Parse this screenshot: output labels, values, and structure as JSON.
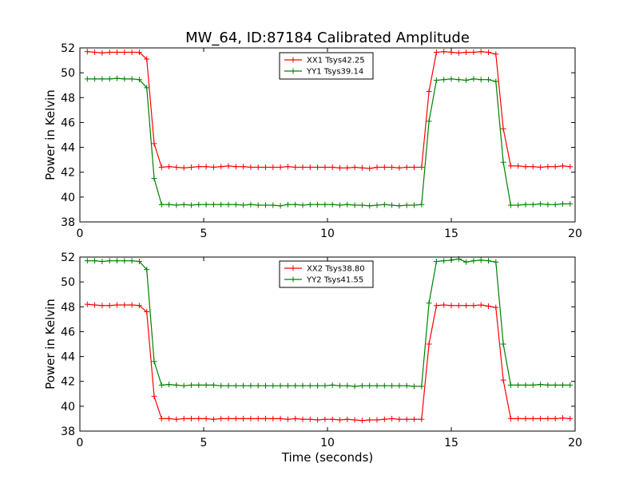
{
  "title": "MW_64, ID:87184 Calibrated Amplitude",
  "chart_data": [
    {
      "type": "line",
      "panel": "top",
      "ylabel": "Power in Kelvin",
      "xlabel": "",
      "xlim": [
        0,
        20
      ],
      "ylim": [
        38,
        52
      ],
      "xticks": [
        0,
        5,
        10,
        15,
        20
      ],
      "yticks": [
        38,
        40,
        42,
        44,
        46,
        48,
        50,
        52
      ],
      "legend_position": "top-center",
      "x": [
        0.3,
        0.6,
        0.9,
        1.2,
        1.5,
        1.8,
        2.1,
        2.4,
        2.7,
        3.0,
        3.3,
        3.6,
        3.9,
        4.2,
        4.5,
        4.8,
        5.1,
        5.4,
        5.7,
        6.0,
        6.3,
        6.6,
        6.9,
        7.2,
        7.5,
        7.8,
        8.1,
        8.4,
        8.7,
        9.0,
        9.3,
        9.6,
        9.9,
        10.2,
        10.5,
        10.8,
        11.1,
        11.4,
        11.7,
        12.0,
        12.3,
        12.6,
        12.9,
        13.2,
        13.5,
        13.8,
        14.1,
        14.4,
        14.7,
        15.0,
        15.3,
        15.6,
        15.9,
        16.2,
        16.5,
        16.8,
        17.1,
        17.4,
        17.7,
        18.0,
        18.3,
        18.6,
        18.9,
        19.2,
        19.5,
        19.8
      ],
      "series": [
        {
          "name": "XX1 Tsys42.25",
          "color": "#ff0000",
          "values": [
            51.7,
            51.65,
            51.6,
            51.65,
            51.65,
            51.65,
            51.65,
            51.65,
            51.1,
            44.3,
            42.4,
            42.45,
            42.4,
            42.35,
            42.4,
            42.45,
            42.45,
            42.4,
            42.45,
            42.5,
            42.45,
            42.45,
            42.4,
            42.4,
            42.4,
            42.4,
            42.4,
            42.45,
            42.4,
            42.4,
            42.4,
            42.4,
            42.4,
            42.4,
            42.35,
            42.35,
            42.4,
            42.35,
            42.3,
            42.4,
            42.4,
            42.4,
            42.35,
            42.4,
            42.4,
            42.4,
            48.5,
            51.65,
            51.7,
            51.65,
            51.6,
            51.65,
            51.65,
            51.7,
            51.65,
            51.5,
            45.5,
            42.5,
            42.5,
            42.45,
            42.45,
            42.4,
            42.45,
            42.45,
            42.5,
            42.45
          ]
        },
        {
          "name": "YY1 Tsys39.14",
          "color": "#008000",
          "values": [
            49.5,
            49.5,
            49.5,
            49.5,
            49.55,
            49.5,
            49.5,
            49.45,
            48.8,
            41.5,
            39.4,
            39.4,
            39.35,
            39.4,
            39.35,
            39.4,
            39.4,
            39.4,
            39.4,
            39.4,
            39.4,
            39.35,
            39.4,
            39.35,
            39.35,
            39.35,
            39.3,
            39.4,
            39.4,
            39.35,
            39.4,
            39.4,
            39.4,
            39.4,
            39.35,
            39.4,
            39.35,
            39.35,
            39.3,
            39.35,
            39.4,
            39.35,
            39.3,
            39.35,
            39.35,
            39.4,
            46.1,
            49.4,
            49.45,
            49.5,
            49.45,
            49.4,
            49.5,
            49.45,
            49.45,
            49.3,
            42.8,
            39.35,
            39.35,
            39.4,
            39.4,
            39.45,
            39.4,
            39.4,
            39.45,
            39.45
          ]
        }
      ]
    },
    {
      "type": "line",
      "panel": "bottom",
      "ylabel": "Power in Kelvin",
      "xlabel": "Time (seconds)",
      "xlim": [
        0,
        20
      ],
      "ylim": [
        38,
        52
      ],
      "xticks": [
        0,
        5,
        10,
        15,
        20
      ],
      "yticks": [
        38,
        40,
        42,
        44,
        46,
        48,
        50,
        52
      ],
      "legend_position": "top-center",
      "x": [
        0.3,
        0.6,
        0.9,
        1.2,
        1.5,
        1.8,
        2.1,
        2.4,
        2.7,
        3.0,
        3.3,
        3.6,
        3.9,
        4.2,
        4.5,
        4.8,
        5.1,
        5.4,
        5.7,
        6.0,
        6.3,
        6.6,
        6.9,
        7.2,
        7.5,
        7.8,
        8.1,
        8.4,
        8.7,
        9.0,
        9.3,
        9.6,
        9.9,
        10.2,
        10.5,
        10.8,
        11.1,
        11.4,
        11.7,
        12.0,
        12.3,
        12.6,
        12.9,
        13.2,
        13.5,
        13.8,
        14.1,
        14.4,
        14.7,
        15.0,
        15.3,
        15.6,
        15.9,
        16.2,
        16.5,
        16.8,
        17.1,
        17.4,
        17.7,
        18.0,
        18.3,
        18.6,
        18.9,
        19.2,
        19.5,
        19.8
      ],
      "series": [
        {
          "name": "XX2 Tsys38.80",
          "color": "#ff0000",
          "values": [
            48.2,
            48.15,
            48.1,
            48.1,
            48.15,
            48.15,
            48.15,
            48.1,
            47.6,
            40.8,
            39.0,
            39.0,
            38.95,
            39.0,
            39.0,
            39.0,
            39.0,
            38.95,
            39.0,
            39.0,
            39.0,
            39.0,
            39.0,
            39.0,
            39.0,
            39.0,
            39.0,
            38.95,
            39.0,
            38.95,
            38.95,
            38.9,
            38.95,
            38.95,
            38.9,
            38.95,
            38.9,
            38.85,
            38.9,
            38.9,
            38.95,
            39.0,
            38.95,
            38.95,
            38.95,
            38.95,
            45.0,
            48.1,
            48.15,
            48.1,
            48.1,
            48.1,
            48.1,
            48.15,
            48.05,
            47.95,
            42.1,
            39.0,
            39.0,
            39.0,
            39.0,
            39.0,
            39.0,
            39.0,
            39.05,
            39.0
          ]
        },
        {
          "name": "YY2 Tsys41.55",
          "color": "#008000",
          "values": [
            51.7,
            51.7,
            51.65,
            51.7,
            51.7,
            51.7,
            51.7,
            51.65,
            51.0,
            43.6,
            41.7,
            41.75,
            41.7,
            41.65,
            41.7,
            41.7,
            41.7,
            41.7,
            41.65,
            41.65,
            41.65,
            41.65,
            41.65,
            41.65,
            41.65,
            41.65,
            41.65,
            41.65,
            41.65,
            41.65,
            41.65,
            41.65,
            41.65,
            41.7,
            41.65,
            41.65,
            41.6,
            41.65,
            41.65,
            41.65,
            41.65,
            41.65,
            41.65,
            41.65,
            41.6,
            41.6,
            48.3,
            51.65,
            51.7,
            51.75,
            51.85,
            51.6,
            51.7,
            51.75,
            51.7,
            51.6,
            45.0,
            41.7,
            41.7,
            41.7,
            41.7,
            41.75,
            41.7,
            41.7,
            41.7,
            41.7
          ]
        }
      ]
    }
  ]
}
